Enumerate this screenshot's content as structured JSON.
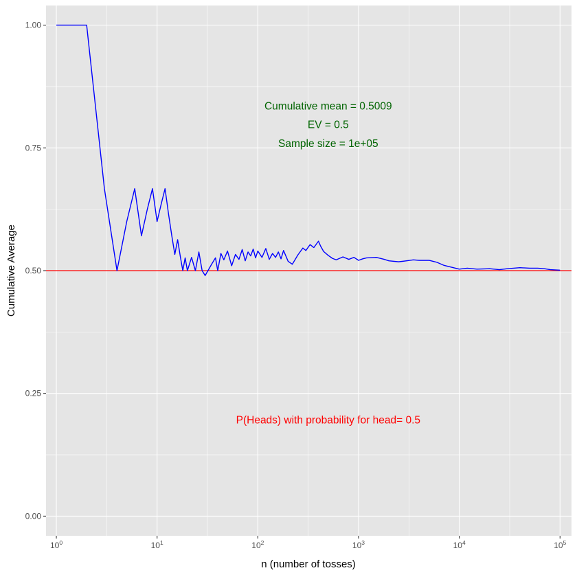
{
  "chart_data": {
    "type": "line",
    "xlabel": "n (number of tosses)",
    "ylabel": "Cumulative Average",
    "x_scale": "log10",
    "xlim": [
      0.79,
      130000
    ],
    "ylim": [
      -0.04,
      1.04
    ],
    "x_ticks": [
      {
        "value": 1,
        "base": "10",
        "exp": "0"
      },
      {
        "value": 10,
        "base": "10",
        "exp": "1"
      },
      {
        "value": 100,
        "base": "10",
        "exp": "2"
      },
      {
        "value": 1000,
        "base": "10",
        "exp": "3"
      },
      {
        "value": 10000,
        "base": "10",
        "exp": "4"
      },
      {
        "value": 100000,
        "base": "10",
        "exp": "5"
      }
    ],
    "y_ticks": [
      {
        "value": 0.0,
        "label": "0.00"
      },
      {
        "value": 0.25,
        "label": "0.25"
      },
      {
        "value": 0.5,
        "label": "0.50"
      },
      {
        "value": 0.75,
        "label": "0.75"
      },
      {
        "value": 1.0,
        "label": "1.00"
      }
    ],
    "grid": true,
    "background": "#e5e5e5",
    "grid_color": "#ffffff",
    "series": [
      {
        "color": "#0000ff",
        "x": [
          1,
          2,
          3,
          4,
          5,
          6,
          7,
          8,
          9,
          10,
          11,
          12,
          13,
          14,
          15,
          16,
          17,
          18,
          19,
          20,
          22,
          24,
          26,
          28,
          30,
          32,
          35,
          38,
          40,
          43,
          46,
          50,
          55,
          60,
          65,
          70,
          75,
          80,
          85,
          90,
          95,
          100,
          110,
          120,
          130,
          140,
          150,
          160,
          170,
          180,
          200,
          220,
          250,
          280,
          300,
          330,
          360,
          400,
          420,
          450,
          500,
          550,
          600,
          700,
          800,
          900,
          1000,
          1100,
          1200,
          1500,
          1800,
          2000,
          2500,
          3000,
          3500,
          4000,
          5000,
          6000,
          7000,
          8000,
          10000,
          12000,
          15000,
          20000,
          25000,
          30000,
          40000,
          50000,
          60000,
          70000,
          80000,
          100000
        ],
        "y": [
          1.0,
          1.0,
          0.667,
          0.5,
          0.6,
          0.667,
          0.571,
          0.625,
          0.667,
          0.6,
          0.636,
          0.667,
          0.615,
          0.571,
          0.533,
          0.563,
          0.529,
          0.5,
          0.526,
          0.5,
          0.527,
          0.5,
          0.538,
          0.5,
          0.49,
          0.5,
          0.514,
          0.526,
          0.5,
          0.535,
          0.522,
          0.54,
          0.51,
          0.533,
          0.523,
          0.543,
          0.52,
          0.538,
          0.53,
          0.544,
          0.526,
          0.54,
          0.527,
          0.545,
          0.523,
          0.535,
          0.527,
          0.538,
          0.524,
          0.541,
          0.519,
          0.513,
          0.532,
          0.546,
          0.541,
          0.553,
          0.547,
          0.56,
          0.55,
          0.539,
          0.531,
          0.525,
          0.522,
          0.528,
          0.523,
          0.527,
          0.521,
          0.524,
          0.526,
          0.527,
          0.523,
          0.52,
          0.518,
          0.52,
          0.522,
          0.521,
          0.521,
          0.517,
          0.511,
          0.508,
          0.503,
          0.505,
          0.503,
          0.504,
          0.502,
          0.504,
          0.506,
          0.505,
          0.505,
          0.504,
          0.502,
          0.501
        ]
      }
    ],
    "hline": {
      "y": 0.5,
      "color": "#ff0000"
    },
    "annotations": [
      {
        "text": "Cumulative mean = 0.5009",
        "x": 500,
        "y": 0.835,
        "color": "#006400"
      },
      {
        "text": "EV = 0.5",
        "x": 500,
        "y": 0.797,
        "color": "#006400"
      },
      {
        "text": "Sample size = 1e+05",
        "x": 500,
        "y": 0.759,
        "color": "#006400"
      },
      {
        "text": "P(Heads) with probability for head=  0.5",
        "x": 500,
        "y": 0.196,
        "color": "#ff0000"
      }
    ]
  }
}
